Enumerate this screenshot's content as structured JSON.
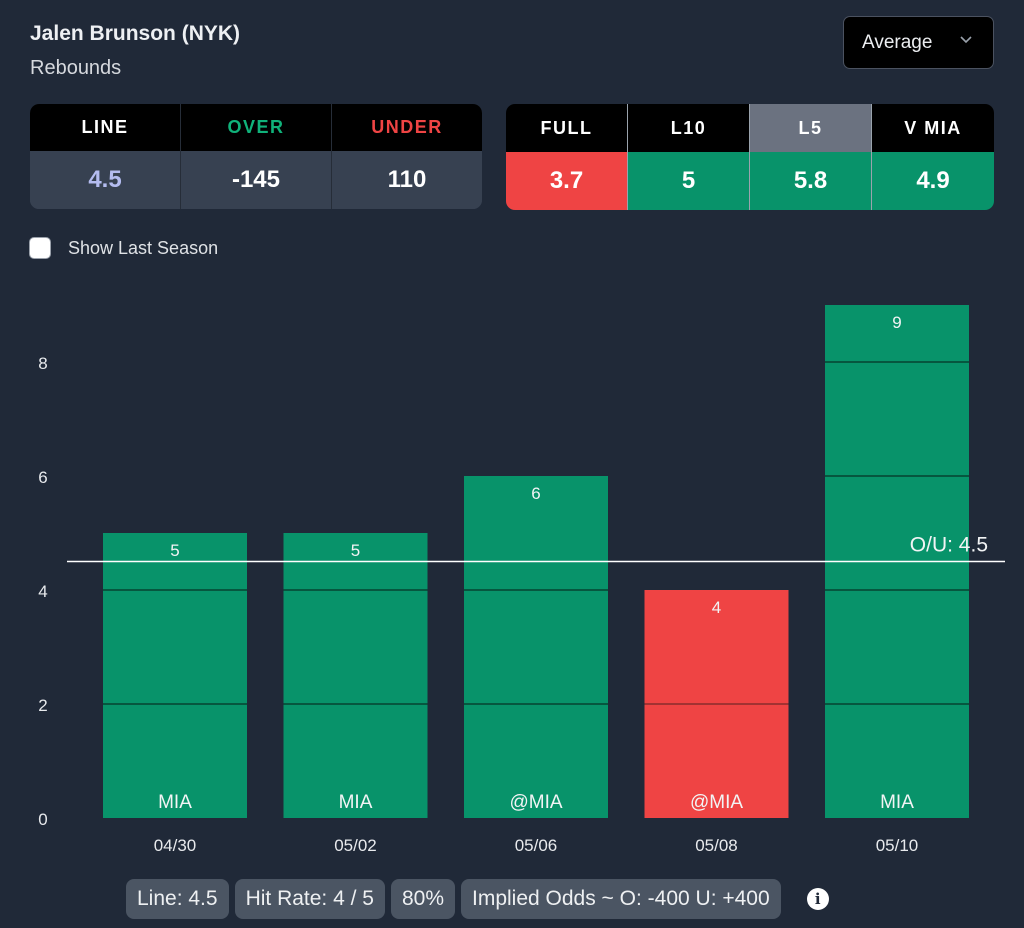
{
  "header": {
    "player": "Jalen Brunson (NYK)",
    "stat": "Rebounds",
    "dropdown": {
      "selected": "Average",
      "icon": "chevron-down-icon"
    }
  },
  "odds_table": {
    "columns": [
      {
        "header": "LINE",
        "value": "4.5"
      },
      {
        "header": "OVER",
        "value": "-145"
      },
      {
        "header": "UNDER",
        "value": "110"
      }
    ]
  },
  "average_table": {
    "selected": "L5",
    "columns": [
      {
        "header": "FULL",
        "value": "3.7",
        "status": "under"
      },
      {
        "header": "L10",
        "value": "5",
        "status": "over"
      },
      {
        "header": "L5",
        "value": "5.8",
        "status": "over"
      },
      {
        "header": "V MIA",
        "value": "4.9",
        "status": "over"
      }
    ]
  },
  "show_last_season": {
    "label": "Show Last Season",
    "checked": false
  },
  "colors": {
    "background": "#202938",
    "over": "#08936a",
    "under": "#ef4444",
    "over_text": "#10b27a",
    "line_value": "#b4bcf0",
    "pill": "#4b5563"
  },
  "chart_data": {
    "type": "bar",
    "title": "",
    "xlabel": "",
    "ylabel": "",
    "ylim": [
      0,
      9
    ],
    "yticks": [
      0,
      2,
      4,
      6,
      8
    ],
    "categories": [
      "04/30",
      "05/02",
      "05/06",
      "05/08",
      "05/10"
    ],
    "opponents": [
      "MIA",
      "MIA",
      "@MIA",
      "@MIA",
      "MIA"
    ],
    "values": [
      5,
      5,
      6,
      4,
      9
    ],
    "reference_line": {
      "value": 4.5,
      "label": "O/U: 4.5"
    },
    "grid": false,
    "legend": "none"
  },
  "footer": {
    "pills": [
      "Line: 4.5",
      "Hit Rate: 4 / 5",
      "80%",
      "Implied Odds ~ O: -400 U: +400"
    ],
    "info_icon": "i"
  }
}
